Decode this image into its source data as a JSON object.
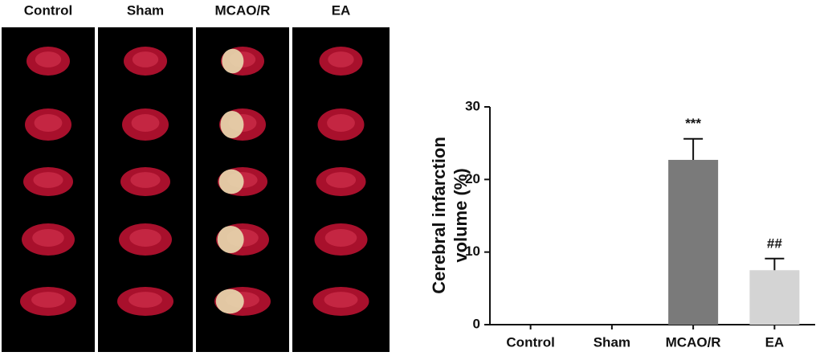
{
  "image_panel": {
    "columns": [
      "Control",
      "Sham",
      "MCAO/R",
      "EA"
    ]
  },
  "chart_data": {
    "type": "bar",
    "ylabel": [
      "Cerebral infarction",
      "volume (%)"
    ],
    "categories": [
      "Control",
      "Sham",
      "MCAO/R",
      "EA"
    ],
    "values": [
      0,
      0,
      22.7,
      7.5
    ],
    "errors": [
      0,
      0,
      2.9,
      1.6
    ],
    "annotations": [
      null,
      null,
      "***",
      "##"
    ],
    "colors": [
      "#7a7a7a",
      "#7a7a7a",
      "#7a7a7a",
      "#d4d4d4"
    ],
    "ylim": [
      0,
      30
    ],
    "yticks": [
      0,
      10,
      20,
      30
    ]
  }
}
